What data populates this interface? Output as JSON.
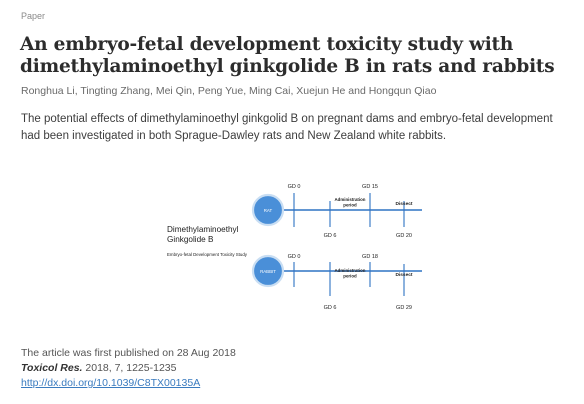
{
  "article": {
    "kicker": "Paper",
    "title": "An embryo-fetal development toxicity study with dimethylaminoethyl ginkgolide B in rats and rabbits",
    "authors": "Ronghua Li, Tingting Zhang, Mei Qin, Peng Yue, Ming Cai, Xuejun He and Hongqun Qiao",
    "abstract": "The potential effects of dimethylaminoethyl ginkgolid B on pregnant dams and embryo-fetal development had been investigated in both Sprague-Dawley rats and New Zealand white rabbits."
  },
  "graphical_abstract": {
    "compound_line1": "Dimethylaminoethyl",
    "compound_line2": "Ginkgolide B",
    "study_label": "Embryo-fetal Development Toxicity Study",
    "rat": {
      "animal": "RAT",
      "gd_start": "GD 0",
      "gd_admin_start": "GD 6",
      "gd_admin_end": "GD 15",
      "gd_end": "GD 20",
      "admin_line1": "Administration",
      "admin_line2": "period",
      "dissect": "Dissect"
    },
    "rabbit": {
      "animal": "RABBIT",
      "gd_start": "GD 0",
      "gd_admin_start": "GD 6",
      "gd_admin_end": "GD 18",
      "gd_end": "GD 29",
      "admin_line1": "Administration",
      "admin_line2": "period",
      "dissect": "Dissect"
    },
    "colors": {
      "circle_fill": "#4a8fd8",
      "circle_ring": "#2f73c4",
      "line": "#2f73c4"
    }
  },
  "publication": {
    "first_published_label": "The article was first published on 28 Aug 2018",
    "journal": "Toxicol Res.",
    "citation": " 2018, 7, 1225-1235",
    "doi": "http://dx.doi.org/10.1039/C8TX00135A"
  }
}
